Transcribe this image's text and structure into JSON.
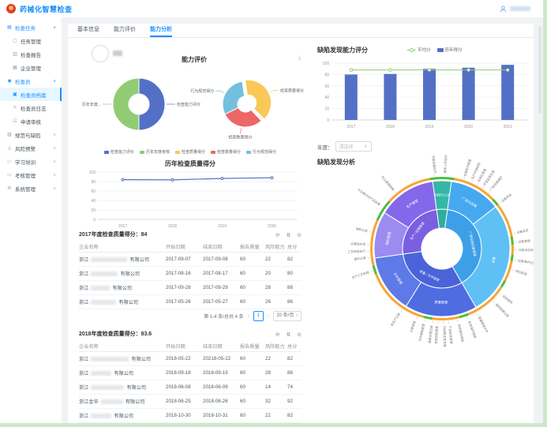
{
  "header": {
    "title": "药械化智慧检查",
    "accent": "#1890ff"
  },
  "sidebar": {
    "items": [
      {
        "type": "group",
        "label": "检查任务",
        "icon": "clipboard",
        "caret": "up",
        "highlight": true
      },
      {
        "type": "sub",
        "label": "任务管理",
        "icon": "doc"
      },
      {
        "type": "sub",
        "label": "检查报告",
        "icon": "report"
      },
      {
        "type": "sub",
        "label": "企业管理",
        "icon": "building"
      },
      {
        "type": "group",
        "label": "检查员",
        "icon": "person",
        "caret": "up",
        "highlight": true
      },
      {
        "type": "sub",
        "label": "检查员档案",
        "icon": "archive",
        "selected": true
      },
      {
        "type": "sub",
        "label": "检查员日志",
        "icon": "log"
      },
      {
        "type": "sub",
        "label": "申请审核",
        "icon": "audit"
      },
      {
        "type": "group",
        "label": "规范与缺陷",
        "icon": "rule",
        "caret": "down"
      },
      {
        "type": "group",
        "label": "风险预警",
        "icon": "risk",
        "caret": "down"
      },
      {
        "type": "group",
        "label": "学习培训",
        "icon": "study",
        "caret": "down"
      },
      {
        "type": "group",
        "label": "考核管理",
        "icon": "exam",
        "caret": "down"
      },
      {
        "type": "group",
        "label": "系统管理",
        "icon": "system",
        "caret": "down"
      }
    ]
  },
  "tabs": {
    "items": [
      "基本信息",
      "能力评价",
      "能力分析"
    ],
    "active": 2
  },
  "year_filter": {
    "label": "年度：",
    "placeholder": "请选择"
  },
  "chart_data": [
    {
      "id": "ability_pies",
      "type": "pie",
      "title": "能力评价",
      "legend": [
        "检查能力评价",
        "历年年度考核",
        "检查质量得分",
        "检查数量得分",
        "行为规范得分"
      ],
      "legend_colors": [
        "#5470c6",
        "#91cc75",
        "#fac858",
        "#ee6666",
        "#73c0de"
      ],
      "pies": [
        {
          "start": 0,
          "slices": [
            {
              "name": "检查能力评价",
              "value": 50,
              "color": "#5470c6",
              "label": "检查能力评价"
            },
            {
              "name": "历年年度考核",
              "value": 50,
              "color": "#91cc75",
              "label": "历年年度..."
            }
          ]
        },
        {
          "start": 352,
          "slices": [
            {
              "name": "检查质量得分",
              "value": 40,
              "color": "#fac858",
              "label": "检查质量得分",
              "offset": true
            },
            {
              "name": "检查数量得分",
              "value": 30,
              "color": "#ee6666",
              "label": "检查数量得分"
            },
            {
              "name": "行为规范得分",
              "value": 30,
              "color": "#73c0de",
              "label": "行为规范得分"
            }
          ]
        }
      ]
    },
    {
      "id": "quality_line",
      "type": "line",
      "title": "历年检查质量得分",
      "categories": [
        "2017",
        "2018",
        "2019",
        "2020"
      ],
      "values": [
        84,
        83.6,
        86.5,
        88
      ],
      "color": "#5470c6",
      "ylim": [
        0,
        100
      ],
      "yticks": [
        0,
        20,
        40,
        60,
        80,
        100
      ]
    },
    {
      "id": "defect_bar",
      "type": "bar",
      "title": "缺陷发现能力评分",
      "legend": [
        {
          "name": "平均分",
          "marker": "line",
          "color": "#91cc75"
        },
        {
          "name": "历年得分",
          "marker": "rect",
          "color": "#5470c6"
        }
      ],
      "categories": [
        "2017",
        "2018",
        "2019",
        "2020",
        "2021"
      ],
      "values": [
        80,
        81,
        90,
        92,
        97
      ],
      "average": 88,
      "ylim": [
        0,
        100
      ],
      "yticks": [
        0,
        20,
        40,
        60,
        80,
        100
      ]
    },
    {
      "id": "defect_sunburst",
      "type": "sunburst",
      "title": "缺陷发现分析",
      "inner": [
        {
          "label": "机构与人员管理",
          "a0": 352,
          "a1": 368,
          "color": "#2fae9e",
          "show": false
        },
        {
          "label": "厂房设施设备管理",
          "a0": 8,
          "a1": 150,
          "color": "#3d9fe8",
          "show": true
        },
        {
          "label": "质量 / 文件管理",
          "a0": 150,
          "a1": 262,
          "color": "#4a63d8",
          "show": true
        },
        {
          "label": "生产 / 经营管理",
          "a0": 262,
          "a1": 352,
          "color": "#7a5fe0",
          "show": true
        }
      ],
      "middle": [
        {
          "label": "机构与人员",
          "a0": 352,
          "a1": 368,
          "color": "#35b7a7",
          "show": true
        },
        {
          "label": "厂房与设施",
          "a0": 8,
          "a1": 52,
          "color": "#46a9ef",
          "show": true
        },
        {
          "label": "设备",
          "a0": 52,
          "a1": 150,
          "color": "#5fc0f5",
          "show": true
        },
        {
          "label": "质量管理",
          "a0": 150,
          "a1": 212,
          "color": "#4f6ce0",
          "show": true
        },
        {
          "label": "文件管理",
          "a0": 212,
          "a1": 262,
          "color": "#5d7ae8",
          "show": true
        },
        {
          "label": "物料管理",
          "a0": 262,
          "a1": 302,
          "color": "#9c8bf0",
          "show": true
        },
        {
          "label": "生产管理",
          "a0": 302,
          "a1": 352,
          "color": "#8568ea",
          "show": true
        }
      ],
      "status_ring": [
        {
          "a0": 10,
          "a1": 46,
          "c": "#f8a531"
        },
        {
          "a0": 46,
          "a1": 52,
          "c": "#4dbd3a"
        },
        {
          "a0": 52,
          "a1": 80,
          "c": "#f8a531"
        },
        {
          "a0": 80,
          "a1": 87,
          "c": "#4dbd3a"
        },
        {
          "a0": 87,
          "a1": 95,
          "c": "#f8a531"
        },
        {
          "a0": 95,
          "a1": 100,
          "c": "#4dbd3a"
        },
        {
          "a0": 100,
          "a1": 117,
          "c": "#f8a531"
        },
        {
          "a0": 117,
          "a1": 123,
          "c": "#4dbd3a"
        },
        {
          "a0": 123,
          "a1": 158,
          "c": "#f8a531"
        },
        {
          "a0": 158,
          "a1": 166,
          "c": "#4dbd3a"
        },
        {
          "a0": 166,
          "a1": 188,
          "c": "#f8a531"
        },
        {
          "a0": 188,
          "a1": 195,
          "c": "#4dbd3a"
        },
        {
          "a0": 195,
          "a1": 249,
          "c": "#f8a531"
        },
        {
          "a0": 249,
          "a1": 256,
          "c": "#4dbd3a"
        },
        {
          "a0": 256,
          "a1": 294,
          "c": "#f8a531"
        },
        {
          "a0": 294,
          "a1": 312,
          "c": "#4dbd3a"
        },
        {
          "a0": 312,
          "a1": 350,
          "c": "#f8a531"
        },
        {
          "a0": 350,
          "a1": 370,
          "c": "#4dbd3a"
        }
      ],
      "outer_labels": [
        {
          "a": 354,
          "t": "设施设备标识"
        },
        {
          "a": 3,
          "t": "操作人员培训"
        },
        {
          "a": 18,
          "t": "仓储条件管理"
        },
        {
          "a": 24,
          "t": "生产环境控制"
        },
        {
          "a": 29,
          "t": "洁净区管理"
        },
        {
          "a": 34,
          "t": "环境监测记录"
        },
        {
          "a": 40,
          "t": "厂房设施维护"
        },
        {
          "a": 52,
          "t": "设备校准"
        },
        {
          "a": 78,
          "t": "设备清洁"
        },
        {
          "a": 85,
          "t": "设备管理"
        },
        {
          "a": 91,
          "t": "设备状态标识"
        },
        {
          "a": 99,
          "t": "设备维护记录"
        },
        {
          "a": 107,
          "t": "岗位职责"
        },
        {
          "a": 128,
          "t": "检验报告"
        },
        {
          "a": 136,
          "t": "留样观察记录"
        },
        {
          "a": 152,
          "t": "质量管理文件"
        },
        {
          "a": 160,
          "t": "标准操作规程"
        },
        {
          "a": 168,
          "t": "检验操作规程"
        },
        {
          "a": 175,
          "t": "产品标准管理"
        },
        {
          "a": 179,
          "t": "持续稳定性考察"
        },
        {
          "a": 183,
          "t": "变更控制管理"
        },
        {
          "a": 187,
          "t": "偏差处理记录"
        },
        {
          "a": 193,
          "t": "文件编制管理"
        },
        {
          "a": 200,
          "t": "记录管理"
        },
        {
          "a": 213,
          "t": "批生产记录"
        },
        {
          "a": 252,
          "t": "生产工艺规程"
        },
        {
          "a": 263,
          "t": "操作记录"
        },
        {
          "a": 268,
          "t": "工艺规程执行"
        },
        {
          "a": 273,
          "t": "记录及时性"
        },
        {
          "a": 283,
          "t": "物料分类"
        },
        {
          "a": 305,
          "t": "不合格中间产品处理"
        },
        {
          "a": 320,
          "t": "防止差错措施"
        }
      ]
    }
  ],
  "tables": [
    {
      "title": "2017年度检查质量得分：84",
      "columns": [
        "企业名称",
        "开始日期",
        "结束日期",
        "报告质量",
        "风险能力",
        "总分"
      ],
      "rows": [
        {
          "company_prefix": "浙江",
          "company_suffix": "有限公司",
          "bw": 46,
          "start": "2017-09-07",
          "end": "2017-09-08",
          "report": "60",
          "risk": "22",
          "total": "82"
        },
        {
          "company_prefix": "浙江",
          "company_suffix": "有限公司",
          "bw": 34,
          "start": "2017-08-16",
          "end": "2017-08-17",
          "report": "60",
          "risk": "20",
          "total": "80"
        },
        {
          "company_prefix": "浙江",
          "company_suffix": "有限公司",
          "bw": 24,
          "start": "2017-09-28",
          "end": "2017-09-29",
          "report": "60",
          "risk": "28",
          "total": "88"
        },
        {
          "company_prefix": "浙江",
          "company_suffix": "有限公司",
          "bw": 32,
          "start": "2017-05-26",
          "end": "2017-05-27",
          "report": "60",
          "risk": "26",
          "total": "86"
        }
      ],
      "pagination": {
        "summary": "第 1-4 条/总共 4 条",
        "prev": "‹",
        "page": "1",
        "next": "›",
        "size": "20 条/页"
      }
    },
    {
      "title": "2018年度检查质量得分：83.6",
      "columns": [
        "企业名称",
        "开始日期",
        "结束日期",
        "报告质量",
        "风险能力",
        "总分"
      ],
      "rows": [
        {
          "company_prefix": "浙江",
          "company_suffix": "有限公司",
          "bw": 48,
          "start": "2018-05-22",
          "end": "20218-05-22",
          "report": "60",
          "risk": "22",
          "total": "82"
        },
        {
          "company_prefix": "浙江",
          "company_suffix": "有限公司",
          "bw": 26,
          "start": "2018-09-18",
          "end": "2018-09-19",
          "report": "60",
          "risk": "28",
          "total": "88"
        },
        {
          "company_prefix": "浙江",
          "company_suffix": "有限公司",
          "bw": 42,
          "start": "2018-06-08",
          "end": "2018-06-09",
          "report": "60",
          "risk": "14",
          "total": "74"
        },
        {
          "company_prefix": "浙江金华",
          "company_suffix": "有限公司",
          "bw": 28,
          "start": "2018-06-25",
          "end": "2018-06-26",
          "report": "60",
          "risk": "32",
          "total": "92"
        },
        {
          "company_prefix": "浙江",
          "company_suffix": "有限公司",
          "bw": 26,
          "start": "2018-10-30",
          "end": "2018-10-31",
          "report": "60",
          "risk": "22",
          "total": "82"
        }
      ]
    }
  ],
  "toolbar_icons": [
    "refresh",
    "column-height",
    "settings"
  ]
}
